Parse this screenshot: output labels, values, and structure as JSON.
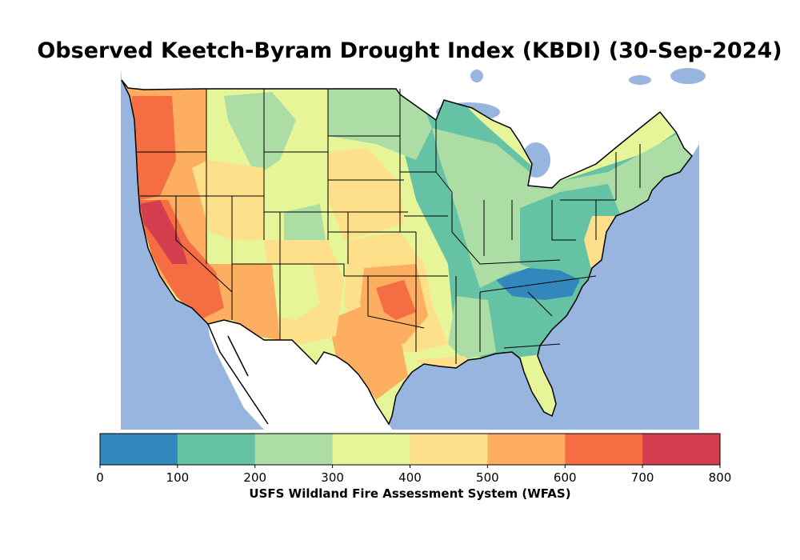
{
  "title": "Observed Keetch-Byram Drought Index (KBDI) (30-Sep-2024)",
  "colorbar": {
    "label": "USFS Wildland Fire Assessment System (WFAS)",
    "ticks": [
      "0",
      "100",
      "200",
      "300",
      "400",
      "500",
      "600",
      "700",
      "800"
    ],
    "bins": [
      {
        "range": "0-100",
        "color": "#3288bd"
      },
      {
        "range": "100-200",
        "color": "#66c2a5"
      },
      {
        "range": "200-300",
        "color": "#abdda4"
      },
      {
        "range": "300-400",
        "color": "#e6f598"
      },
      {
        "range": "400-500",
        "color": "#fee08b"
      },
      {
        "range": "500-600",
        "color": "#fdae61"
      },
      {
        "range": "600-700",
        "color": "#f46d43"
      },
      {
        "range": "700-800",
        "color": "#d53e4f"
      }
    ]
  },
  "colors": {
    "water": "#98b5e0",
    "land_outside": "#ffffff",
    "border": "#000000"
  }
}
